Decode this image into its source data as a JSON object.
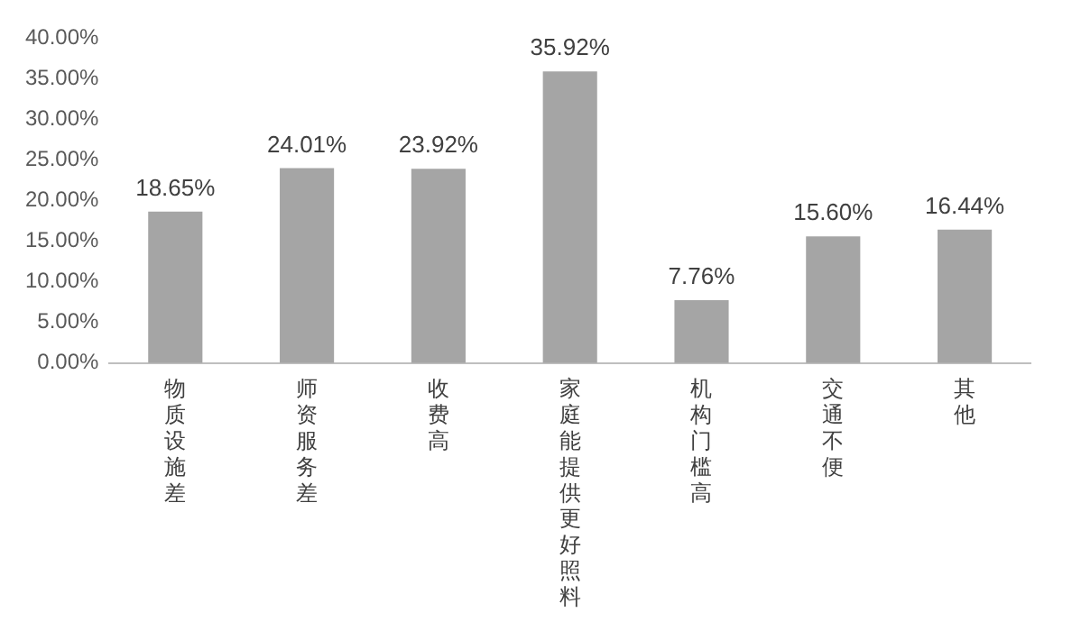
{
  "chart_data": {
    "type": "bar",
    "categories": [
      "物质设施差",
      "师资服务差",
      "收费高",
      "家庭能提供更好照料",
      "机构门槛高",
      "交通不便",
      "其他"
    ],
    "values": [
      18.65,
      24.01,
      23.92,
      35.92,
      7.76,
      15.6,
      16.44
    ],
    "value_labels": [
      "18.65%",
      "24.01%",
      "23.92%",
      "35.92%",
      "7.76%",
      "15.60%",
      "16.44%"
    ],
    "color": "#a5a5a5",
    "ylim": [
      0,
      40
    ],
    "yticks": [
      {
        "value": 0,
        "label": "0.00%"
      },
      {
        "value": 5,
        "label": "5.00%"
      },
      {
        "value": 10,
        "label": "10.00%"
      },
      {
        "value": 15,
        "label": "15.00%"
      },
      {
        "value": 20,
        "label": "20.00%"
      },
      {
        "value": 25,
        "label": "25.00%"
      },
      {
        "value": 30,
        "label": "30.00%"
      },
      {
        "value": 35,
        "label": "35.00%"
      },
      {
        "value": 40,
        "label": "40.00%"
      }
    ],
    "grid": false,
    "legend": false
  }
}
